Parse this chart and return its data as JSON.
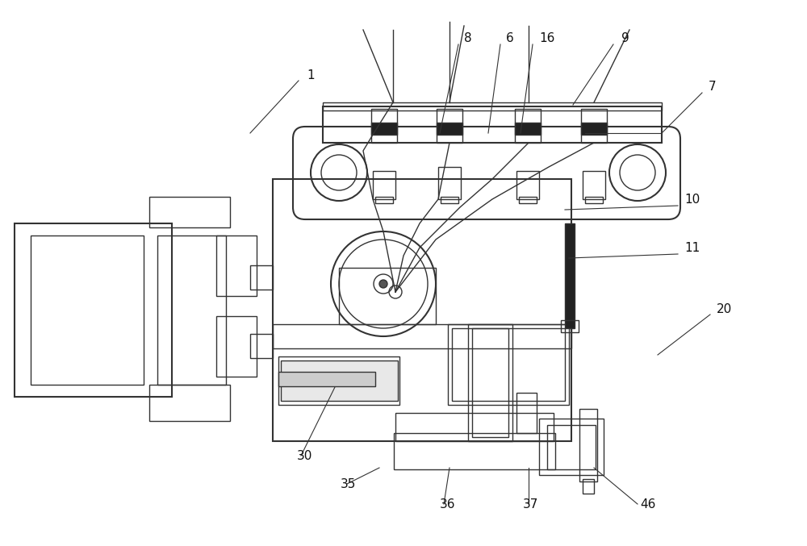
{
  "bg_color": "#ffffff",
  "line_color": "#333333",
  "dark_color": "#111111",
  "figsize": [
    10.0,
    6.77
  ],
  "dpi": 100
}
